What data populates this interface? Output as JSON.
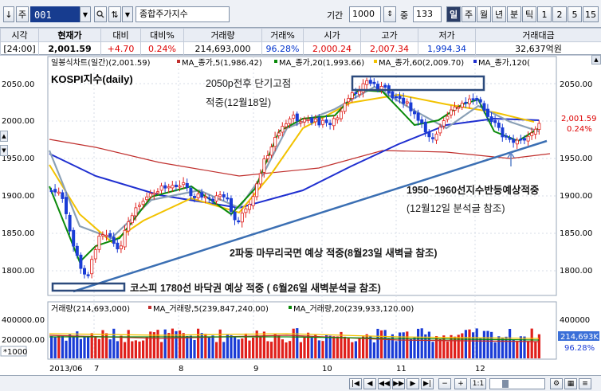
{
  "toolbar": {
    "first_button": "↓",
    "type_button": "주",
    "stock_code": "001",
    "stock_name": "종합주가지수",
    "period_label": "기간",
    "period_value": "1000",
    "count_label": "중",
    "count_value": "133",
    "interval_tabs": [
      "일",
      "주",
      "월",
      "년",
      "분",
      "틱",
      "1",
      "2",
      "5",
      "15"
    ],
    "active_tab": "일"
  },
  "quote": {
    "headers": [
      "시각",
      "현재가",
      "대비",
      "대비%",
      "거래량",
      "거래%",
      "시가",
      "고가",
      "저가",
      "거래대금"
    ],
    "values": [
      "[24:00]",
      "2,001.59",
      "+4.70",
      "0.24%",
      "214,693,000",
      "96.28%",
      "2,000.24",
      "2,007.34",
      "1,994.34",
      "32,637억원"
    ]
  },
  "chart": {
    "legend_price": "일봉식차트(일간)(2,001.59)",
    "ma5_legend": "MA_종가,5(1,986.42)",
    "ma20_legend": "MA_종가,20(1,993.66)",
    "ma60_legend": "MA_종가,60(2,009.70)",
    "ma120_legend": "MA_종가,120(",
    "index_label": "KOSPI지수(daily)",
    "last_price_badge": "2,001.59",
    "last_change_badge": "0.24%",
    "y_ticks": [
      "2050.00",
      "2000.00",
      "1950.00",
      "1900.00",
      "1850.00",
      "1800.00"
    ],
    "y_ticks_right": [
      "2050.00",
      "1950.00",
      "1900.00",
      "1850.00",
      "1800.00"
    ],
    "x_ticks": [
      "2013/06",
      "7",
      "8",
      "9",
      "10",
      "11",
      "12"
    ],
    "annotations": {
      "a1_line1": "2050p전후 단기고점",
      "a1_line2": "적중(12월18일)",
      "a2_line1": "1950~1960선지수반등예상적중",
      "a2_line2": "(12월12일 분석글 참조)",
      "a3": "2파동 마무리국면 예상 적중(8월23일 새벽글 참조)",
      "a4": "코스피 1780선 바닥권 예상 적중 ( 6월26일 새벽분석글 참조)"
    }
  },
  "volume": {
    "legend_volume": "거래량(214,693,000)",
    "ma5_legend": "MA_거래량,5(239,847,240.00)",
    "ma20_legend": "MA_거래량,20(239,933,120.00)",
    "y_ticks": [
      "400000.00",
      "200000.00"
    ],
    "unit_label": "*1000",
    "right_badge_value": "214,693K",
    "right_badge_pct": "96.28%",
    "right_tick": "400000"
  },
  "colors": {
    "up": "#e0201c",
    "down": "#1a3cd6",
    "ma5": "#0a8a0a",
    "ma20_gray": "#8aa0b6",
    "ma60_yellow": "#f2c200",
    "ma120_blue": "#1f2fd0",
    "ma_red": "#c0302e",
    "trendline": "#3b6fb3"
  },
  "bottom": {
    "zoom_label": "1:1"
  }
}
